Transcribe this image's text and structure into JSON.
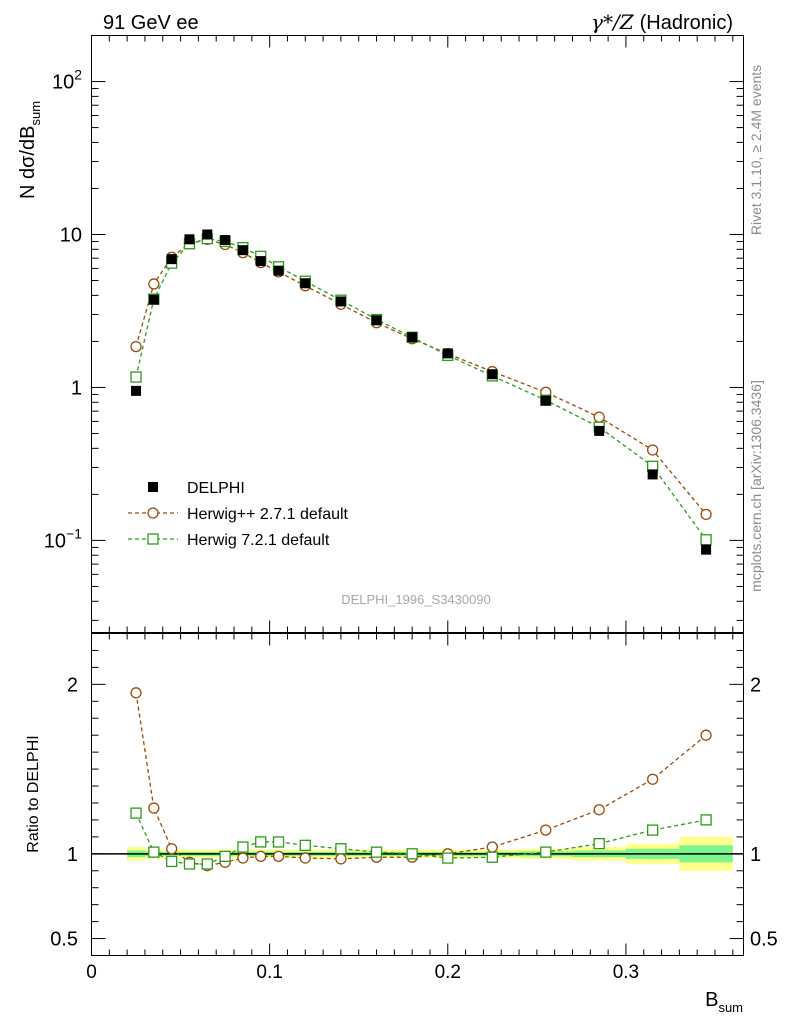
{
  "header": {
    "left": "91 GeV ee",
    "right_sym": "γ*/Z",
    "right_text": "(Hadronic)"
  },
  "side_labels": {
    "rivet": "Rivet 3.1.10, ≥ 2.4M events",
    "mcplots": "mcplots.cern.ch [arXiv:1306.3436]"
  },
  "watermark": "DELPHI_1996_S3430090",
  "colors": {
    "data": "#000000",
    "herwigpp": "#9a4a0c",
    "herwig7": "#2e9a1e",
    "band_inner": "#7cf58e",
    "band_outer": "#ffff8c"
  },
  "chart_data": [
    {
      "type": "scatter",
      "panel": "main",
      "ylabel_main": "N dσ/dB",
      "ylabel_sub": "sum",
      "yscale": "log",
      "xlim": [
        0,
        0.366
      ],
      "ylim": [
        0.025,
        200
      ],
      "yticks": [
        {
          "v": 100,
          "base": "10",
          "exp": "2"
        },
        {
          "v": 10,
          "base": "10",
          "exp": ""
        },
        {
          "v": 1,
          "base": "1",
          "exp": ""
        },
        {
          "v": 0.1,
          "base": "10",
          "exp": "−1"
        }
      ],
      "series": [
        {
          "name": "DELPHI",
          "x": [
            0.025,
            0.035,
            0.045,
            0.055,
            0.065,
            0.075,
            0.085,
            0.095,
            0.105,
            0.12,
            0.14,
            0.16,
            0.18,
            0.2,
            0.225,
            0.255,
            0.285,
            0.315,
            0.345
          ],
          "y": [
            0.95,
            3.75,
            6.9,
            9.3,
            10.0,
            9.2,
            7.9,
            6.7,
            5.8,
            4.8,
            3.65,
            2.75,
            2.13,
            1.67,
            1.22,
            0.82,
            0.52,
            0.27,
            0.087
          ]
        },
        {
          "name": "Herwig++ 2.7.1 default",
          "x": [
            0.025,
            0.035,
            0.045,
            0.055,
            0.065,
            0.075,
            0.085,
            0.095,
            0.105,
            0.12,
            0.14,
            0.16,
            0.18,
            0.2,
            0.225,
            0.255,
            0.285,
            0.315,
            0.345
          ],
          "y": [
            1.85,
            4.75,
            7.1,
            8.7,
            9.3,
            8.6,
            7.6,
            6.55,
            5.7,
            4.62,
            3.5,
            2.65,
            2.08,
            1.66,
            1.27,
            0.93,
            0.64,
            0.39,
            0.148
          ]
        },
        {
          "name": "Herwig 7.2.1 default",
          "x": [
            0.025,
            0.035,
            0.045,
            0.055,
            0.065,
            0.075,
            0.085,
            0.095,
            0.105,
            0.12,
            0.14,
            0.16,
            0.18,
            0.2,
            0.225,
            0.255,
            0.285,
            0.315,
            0.345
          ],
          "y": [
            1.17,
            3.78,
            6.5,
            8.7,
            9.4,
            9.0,
            8.2,
            7.2,
            6.15,
            4.95,
            3.72,
            2.78,
            2.13,
            1.62,
            1.19,
            0.825,
            0.55,
            0.305,
            0.101
          ]
        }
      ],
      "legend": [
        "DELPHI",
        "Herwig++ 2.7.1 default",
        "Herwig 7.2.1 default"
      ],
      "legend_position": "bottom-left"
    },
    {
      "type": "scatter",
      "panel": "ratio",
      "ylabel": "Ratio to DELPHI",
      "xlabel_main": "B",
      "xlabel_sub": "sum",
      "xlim": [
        0,
        0.366
      ],
      "ylim": [
        0.4,
        2.3
      ],
      "xticks": [
        {
          "v": 0,
          "label": "0"
        },
        {
          "v": 0.1,
          "label": "0.1"
        },
        {
          "v": 0.2,
          "label": "0.2"
        },
        {
          "v": 0.3,
          "label": "0.3"
        }
      ],
      "yticks": [
        {
          "v": 0.5,
          "label": "0.5"
        },
        {
          "v": 1,
          "label": "1"
        },
        {
          "v": 2,
          "label": "2"
        }
      ],
      "series": [
        {
          "name": "Herwig++ 2.7.1 default",
          "x": [
            0.025,
            0.035,
            0.045,
            0.055,
            0.065,
            0.075,
            0.085,
            0.095,
            0.105,
            0.12,
            0.14,
            0.16,
            0.18,
            0.2,
            0.225,
            0.255,
            0.285,
            0.315,
            0.345
          ],
          "y": [
            1.95,
            1.27,
            1.03,
            0.95,
            0.93,
            0.95,
            0.975,
            0.985,
            0.985,
            0.975,
            0.97,
            0.98,
            0.98,
            1.0,
            1.04,
            1.14,
            1.26,
            1.44,
            1.7
          ]
        },
        {
          "name": "Herwig 7.2.1 default",
          "x": [
            0.025,
            0.035,
            0.045,
            0.055,
            0.065,
            0.075,
            0.085,
            0.095,
            0.105,
            0.12,
            0.14,
            0.16,
            0.18,
            0.2,
            0.225,
            0.255,
            0.285,
            0.315,
            0.345
          ],
          "y": [
            1.24,
            1.01,
            0.955,
            0.94,
            0.94,
            0.985,
            1.04,
            1.07,
            1.07,
            1.05,
            1.03,
            1.01,
            1.0,
            0.975,
            0.98,
            1.01,
            1.06,
            1.14,
            1.2
          ]
        }
      ],
      "band": {
        "x_edges": [
          0.02,
          0.03,
          0.04,
          0.05,
          0.06,
          0.07,
          0.08,
          0.09,
          0.1,
          0.11,
          0.13,
          0.15,
          0.17,
          0.19,
          0.21,
          0.24,
          0.27,
          0.3,
          0.33,
          0.36
        ],
        "inner": [
          0.02,
          0.015,
          0.012,
          0.012,
          0.012,
          0.012,
          0.012,
          0.012,
          0.012,
          0.012,
          0.012,
          0.012,
          0.012,
          0.012,
          0.012,
          0.015,
          0.02,
          0.03,
          0.05
        ],
        "outer": [
          0.04,
          0.03,
          0.025,
          0.025,
          0.025,
          0.025,
          0.025,
          0.025,
          0.025,
          0.025,
          0.025,
          0.025,
          0.025,
          0.025,
          0.025,
          0.03,
          0.04,
          0.06,
          0.1
        ]
      }
    }
  ]
}
